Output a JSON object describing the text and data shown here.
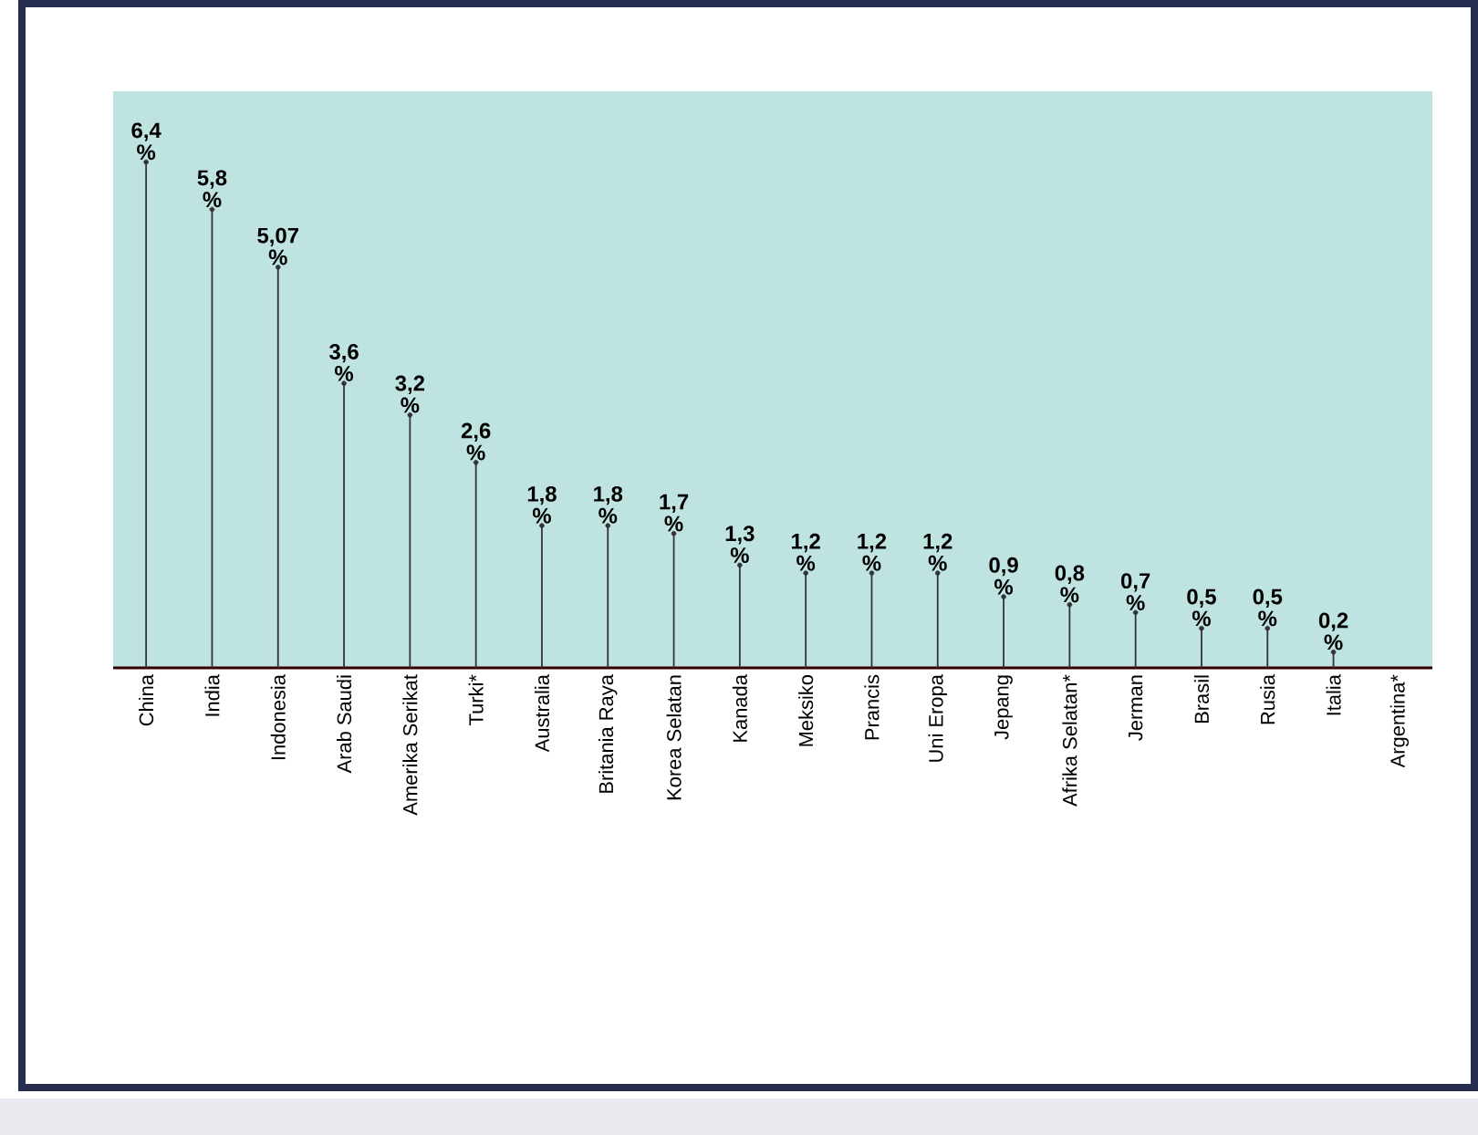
{
  "chart_data": {
    "type": "lollipop",
    "categories": [
      "China",
      "India",
      "Indonesia",
      "Arab Saudi",
      "Amerika Serikat",
      "Turki*",
      "Australia",
      "Britania Raya",
      "Korea Selatan",
      "Kanada",
      "Meksiko",
      "Prancis",
      "Uni Eropa",
      "Jepang",
      "Afrika Selatan*",
      "Jerman",
      "Brasil",
      "Rusia",
      "Italia",
      "Argentina*"
    ],
    "values": [
      6.4,
      5.8,
      5.07,
      3.6,
      3.2,
      2.6,
      1.8,
      1.8,
      1.7,
      1.3,
      1.2,
      1.2,
      1.2,
      0.9,
      0.8,
      0.7,
      0.5,
      0.5,
      0.2,
      null
    ],
    "value_labels": [
      "6,4 %",
      "5,8 %",
      "5,07 %",
      "3,6 %",
      "3,2 %",
      "2,6 %",
      "1,8 %",
      "1,8 %",
      "1,7 %",
      "1,3 %",
      "1,2 %",
      "1,2 %",
      "1,2 %",
      "0,9 %",
      "0,8 %",
      "0,7 %",
      "0,5 %",
      "0,5 %",
      "0,2 %",
      null
    ],
    "color": "#333333"
  }
}
